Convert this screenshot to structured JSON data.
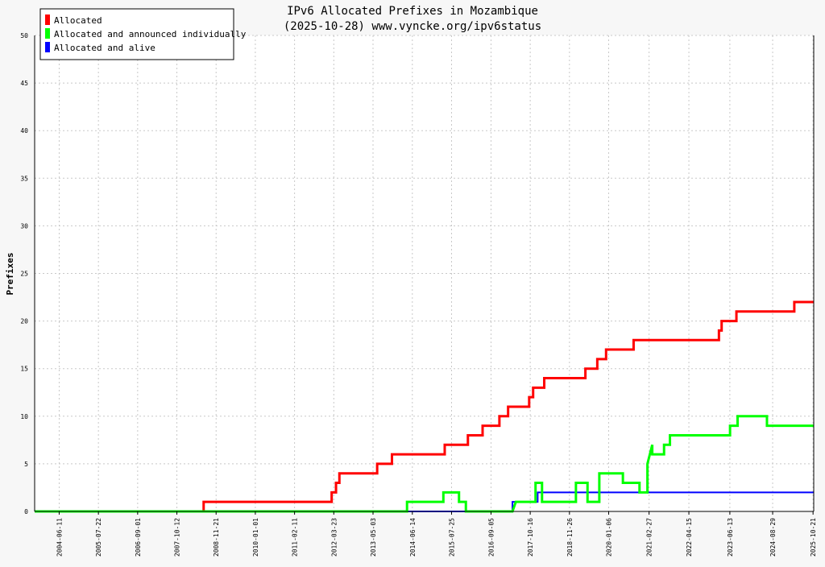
{
  "chart_data": {
    "type": "line",
    "title": "IPv6 Allocated Prefixes in Mozambique",
    "subtitle": "(2025-10-28) www.vyncke.org/ipv6status",
    "xlabel": "",
    "ylabel": "Prefixes",
    "xlim": [
      "2003-10-01",
      "2025-10-28"
    ],
    "ylim": [
      0,
      50
    ],
    "yticks": [
      0,
      5,
      10,
      15,
      20,
      25,
      30,
      35,
      40,
      45,
      50
    ],
    "xticks": [
      "2004-06-11",
      "2005-07-22",
      "2006-09-01",
      "2007-10-12",
      "2008-11-21",
      "2010-01-01",
      "2011-02-11",
      "2012-03-23",
      "2013-05-03",
      "2014-06-14",
      "2015-07-25",
      "2016-09-05",
      "2017-10-16",
      "2018-11-26",
      "2020-01-06",
      "2021-02-27",
      "2022-04-15",
      "2023-06-13",
      "2024-08-29",
      "2025-10-21"
    ],
    "grid": true,
    "legend_position": "top-left",
    "series": [
      {
        "name": "Allocated",
        "color": "#ff0000",
        "points": [
          [
            "2003-10-01",
            0
          ],
          [
            "2008-07-15",
            0
          ],
          [
            "2008-07-15",
            1
          ],
          [
            "2012-03-01",
            1
          ],
          [
            "2012-03-01",
            2
          ],
          [
            "2012-04-15",
            2
          ],
          [
            "2012-04-15",
            3
          ],
          [
            "2012-05-20",
            3
          ],
          [
            "2012-05-20",
            4
          ],
          [
            "2013-06-15",
            4
          ],
          [
            "2013-06-15",
            5
          ],
          [
            "2013-11-15",
            5
          ],
          [
            "2013-11-15",
            6
          ],
          [
            "2015-05-15",
            6
          ],
          [
            "2015-05-15",
            7
          ],
          [
            "2016-01-10",
            7
          ],
          [
            "2016-01-10",
            8
          ],
          [
            "2016-06-10",
            8
          ],
          [
            "2016-06-10",
            9
          ],
          [
            "2016-12-01",
            9
          ],
          [
            "2016-12-01",
            10
          ],
          [
            "2017-03-01",
            10
          ],
          [
            "2017-03-01",
            11
          ],
          [
            "2017-10-05",
            11
          ],
          [
            "2017-10-05",
            12
          ],
          [
            "2017-11-15",
            12
          ],
          [
            "2017-11-15",
            13
          ],
          [
            "2018-03-10",
            13
          ],
          [
            "2018-03-10",
            14
          ],
          [
            "2019-05-10",
            14
          ],
          [
            "2019-05-10",
            15
          ],
          [
            "2019-09-10",
            15
          ],
          [
            "2019-09-10",
            16
          ],
          [
            "2019-12-10",
            16
          ],
          [
            "2019-12-10",
            17
          ],
          [
            "2020-09-20",
            17
          ],
          [
            "2020-09-20",
            18
          ],
          [
            "2023-02-20",
            18
          ],
          [
            "2023-02-20",
            19
          ],
          [
            "2023-03-20",
            19
          ],
          [
            "2023-03-20",
            20
          ],
          [
            "2023-08-20",
            20
          ],
          [
            "2023-08-20",
            21
          ],
          [
            "2025-04-10",
            21
          ],
          [
            "2025-04-10",
            22
          ],
          [
            "2025-10-28",
            22
          ]
        ]
      },
      {
        "name": "Allocated and announced individually",
        "color": "#00ff00",
        "points": [
          [
            "2003-10-01",
            0
          ],
          [
            "2014-04-20",
            0
          ],
          [
            "2014-04-20",
            1
          ],
          [
            "2015-05-01",
            1
          ],
          [
            "2015-05-01",
            2
          ],
          [
            "2015-10-10",
            2
          ],
          [
            "2015-10-10",
            1
          ],
          [
            "2015-12-20",
            1
          ],
          [
            "2015-12-20",
            0
          ],
          [
            "2017-04-15",
            0
          ],
          [
            "2017-05-20",
            1
          ],
          [
            "2017-12-10",
            1
          ],
          [
            "2017-12-10",
            3
          ],
          [
            "2018-02-15",
            3
          ],
          [
            "2018-02-15",
            1
          ],
          [
            "2019-02-01",
            1
          ],
          [
            "2019-02-01",
            3
          ],
          [
            "2019-06-01",
            3
          ],
          [
            "2019-06-01",
            1
          ],
          [
            "2019-10-01",
            1
          ],
          [
            "2019-10-01",
            4
          ],
          [
            "2020-06-01",
            4
          ],
          [
            "2020-06-01",
            3
          ],
          [
            "2020-11-20",
            3
          ],
          [
            "2020-11-20",
            2
          ],
          [
            "2021-02-10",
            2
          ],
          [
            "2021-02-10",
            5
          ],
          [
            "2021-04-01",
            7
          ],
          [
            "2021-04-01",
            6
          ],
          [
            "2021-08-01",
            6
          ],
          [
            "2021-08-01",
            7
          ],
          [
            "2021-10-01",
            7
          ],
          [
            "2021-10-01",
            8
          ],
          [
            "2023-06-15",
            8
          ],
          [
            "2023-06-15",
            9
          ],
          [
            "2023-09-01",
            9
          ],
          [
            "2023-09-01",
            10
          ],
          [
            "2024-07-01",
            10
          ],
          [
            "2024-07-01",
            9
          ],
          [
            "2025-10-28",
            9
          ]
        ]
      },
      {
        "name": "Allocated and alive",
        "color": "#0000ff",
        "points": [
          [
            "2003-10-01",
            0
          ],
          [
            "2017-04-15",
            0
          ],
          [
            "2017-04-15",
            1
          ],
          [
            "2018-01-01",
            1
          ],
          [
            "2018-01-01",
            2
          ],
          [
            "2025-10-28",
            2
          ]
        ]
      }
    ]
  }
}
